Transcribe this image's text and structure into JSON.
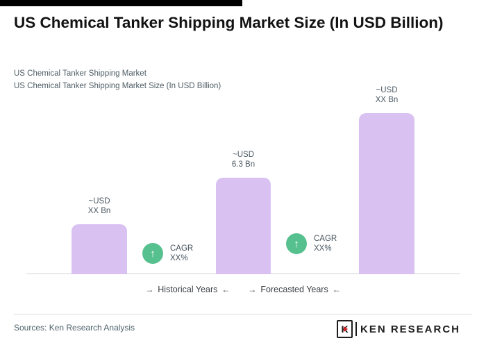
{
  "header": {
    "title": "US Chemical Tanker Shipping Market Size (In USD Billion)",
    "subtitle_line1": "US Chemical Tanker Shipping Market",
    "subtitle_line2": "US Chemical Tanker Shipping Market Size (In USD Billion)"
  },
  "footer": {
    "source": "Sources: Ken Research Analysis",
    "logo_letter": "K",
    "logo_text": "KEN RESEARCH"
  },
  "colors": {
    "bar": "#d9c2f2",
    "cagr_green": "#57c08f",
    "logo_red": "#d61f26",
    "top_bar": "#000000"
  },
  "chart_data": {
    "type": "bar",
    "title": "US Chemical Tanker Shipping Market Size (In USD Billion)",
    "unit": "USD Billion",
    "bars": [
      {
        "label_line1": "~USD",
        "label_line2": "XX Bn",
        "value_usd_bn": "XX",
        "relative_height": 0.31
      },
      {
        "label_line1": "~USD",
        "label_line2": "6.3 Bn",
        "value_usd_bn": 6.3,
        "relative_height": 0.6
      },
      {
        "label_line1": "~USD",
        "label_line2": "XX Bn",
        "value_usd_bn": "XX",
        "relative_height": 1.0
      }
    ],
    "cagr": [
      {
        "arrow": "↑",
        "label": "CAGR",
        "value": "XX%"
      },
      {
        "arrow": "↑",
        "label": "CAGR",
        "value": "XX%"
      }
    ],
    "x_axis": [
      {
        "pre_arrow": "→",
        "label": "Historical Years",
        "post_arrow": "←"
      },
      {
        "pre_arrow": "→",
        "label": "Forecasted Years",
        "post_arrow": "←"
      }
    ],
    "layout": {
      "legend": "none",
      "grid": false,
      "baseline_only": true,
      "bar_corner": "rounded-top"
    }
  }
}
